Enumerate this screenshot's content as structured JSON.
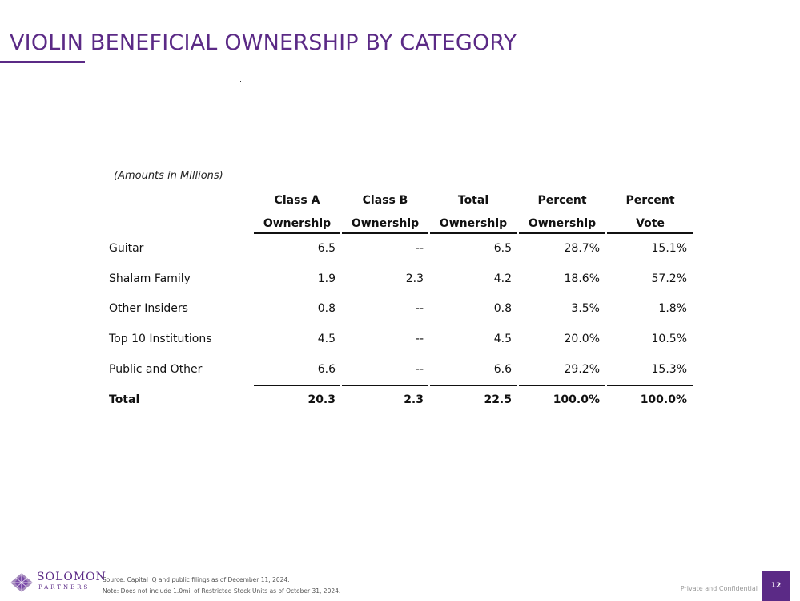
{
  "title": "VIOLIN BENEFICIAL OWNERSHIP BY CATEGORY",
  "accent_color": "#5b2a86",
  "table": {
    "note": "(Amounts in Millions)",
    "headers": [
      {
        "line1": "Class A",
        "line2": "Ownership"
      },
      {
        "line1": "Class B",
        "line2": "Ownership"
      },
      {
        "line1": "Total",
        "line2": "Ownership"
      },
      {
        "line1": "Percent",
        "line2": "Ownership"
      },
      {
        "line1": "Percent",
        "line2": "Vote"
      }
    ],
    "rows": [
      {
        "label": "Guitar",
        "values": [
          "6.5",
          "--",
          "6.5",
          "28.7%",
          "15.1%"
        ]
      },
      {
        "label": "Shalam Family",
        "values": [
          "1.9",
          "2.3",
          "4.2",
          "18.6%",
          "57.2%"
        ]
      },
      {
        "label": "Other Insiders",
        "values": [
          "0.8",
          "--",
          "0.8",
          "3.5%",
          "1.8%"
        ]
      },
      {
        "label": "Top 10 Institutions",
        "values": [
          "4.5",
          "--",
          "4.5",
          "20.0%",
          "10.5%"
        ]
      },
      {
        "label": "Public and Other",
        "values": [
          "6.6",
          "--",
          "6.6",
          "29.2%",
          "15.3%"
        ]
      }
    ],
    "total": {
      "label": "Total",
      "values": [
        "20.3",
        "2.3",
        "22.5",
        "100.0%",
        "100.0%"
      ]
    }
  },
  "footer": {
    "logo_name": "SOLOMON",
    "logo_sub": "PARTNERS",
    "logo_icon": "solomon-diamond-icon",
    "source": "Source: Capital IQ and public filings as of December 11, 2024.",
    "note": "Note: Does not include 1.0mil of Restricted Stock Units as of October 31, 2024.",
    "confidential": "Private and Confidential",
    "page": "12"
  }
}
